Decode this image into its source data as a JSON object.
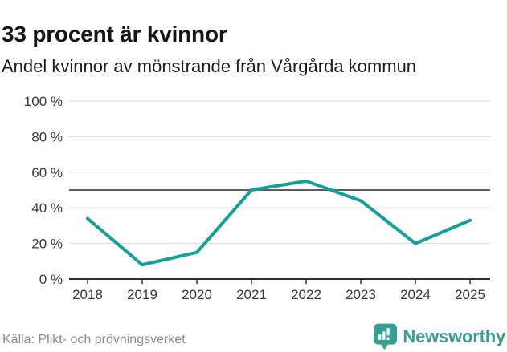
{
  "header": {
    "title": "33 procent är kvinnor",
    "subtitle": "Andel kvinnor av mönstrande från Vårgårda kommun"
  },
  "chart_data": {
    "type": "line",
    "title": "33 procent är kvinnor",
    "subtitle": "Andel kvinnor av mönstrande från Vårgårda kommun",
    "categories": [
      "2018",
      "2019",
      "2020",
      "2021",
      "2022",
      "2023",
      "2024",
      "2025"
    ],
    "series": [
      {
        "name": "Andel kvinnor av mönstrande",
        "color": "#14a096",
        "values": [
          34,
          8,
          15,
          50,
          55,
          44,
          20,
          33
        ]
      }
    ],
    "unit": "%",
    "ylim": [
      0,
      100
    ],
    "yticks": [
      0,
      20,
      40,
      60,
      80,
      100
    ],
    "ytick_labels": [
      "0 %",
      "20 %",
      "40 %",
      "60 %",
      "80 %",
      "100 %"
    ],
    "reference_line": {
      "value": 50,
      "color": "#5e5e5e"
    },
    "grid": true,
    "legend": "none"
  },
  "footer": {
    "source": "Källa: Plikt- och prövningsverket",
    "brand_name": "Newsworthy"
  },
  "colors": {
    "accent_teal": "#14a096",
    "brand_teal": "#3a9e94",
    "grid": "#dcdcdc",
    "axis": "#2f2f2f",
    "reference": "#5e5e5e",
    "label": "#3a3a3a",
    "text_dark": "#1d1d1d",
    "text_muted": "#8a8a8a"
  }
}
